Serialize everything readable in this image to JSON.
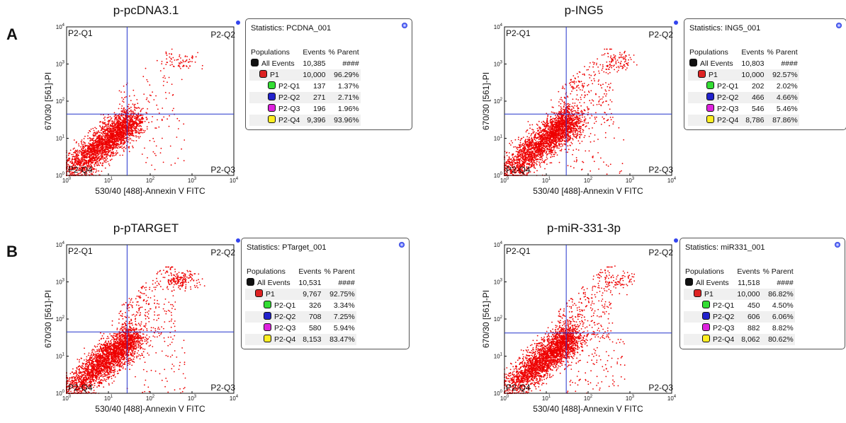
{
  "figure": {
    "panel_labels": [
      "A",
      "B"
    ],
    "axis": {
      "xlabel": "530/40 [488]-Annexin V FITC",
      "ylabel": "670/30 [561]-PI",
      "tick_labels": [
        "0",
        "1",
        "2",
        "3",
        "4"
      ]
    },
    "column_headers": {
      "populations": "Populations",
      "events": "Events",
      "parent": "% Parent"
    }
  },
  "chart_data": [
    {
      "type": "scatter",
      "title": "p-pcDNA3.1",
      "xlabel": "530/40 [488]-Annexin V FITC",
      "ylabel": "670/30 [561]-PI",
      "x_scale": "log",
      "y_scale": "log",
      "xlim": [
        1,
        10000
      ],
      "ylim": [
        1,
        10000
      ],
      "quadrant_gate": {
        "x": 28,
        "y": 45
      },
      "quadrant_labels": [
        "P2-Q1",
        "P2-Q2",
        "P2-Q3",
        "P2-Q4"
      ],
      "stats_title": "Statistics: PCDNA_001",
      "populations": [
        {
          "name": "All Events",
          "events": "10,385",
          "parent": "####",
          "color": "#111111",
          "level": 0
        },
        {
          "name": "P1",
          "events": "10,000",
          "parent": "96.29%",
          "color": "#dd2222",
          "level": 1
        },
        {
          "name": "P2-Q1",
          "events": "137",
          "parent": "1.37%",
          "color": "#33dd33",
          "level": 2
        },
        {
          "name": "P2-Q2",
          "events": "271",
          "parent": "2.71%",
          "color": "#2222cc",
          "level": 2
        },
        {
          "name": "P2-Q3",
          "events": "196",
          "parent": "1.96%",
          "color": "#dd22dd",
          "level": 2
        },
        {
          "name": "P2-Q4",
          "events": "9,396",
          "parent": "93.96%",
          "color": "#ffee22",
          "level": 2
        }
      ]
    },
    {
      "type": "scatter",
      "title": "p-ING5",
      "xlabel": "530/40 [488]-Annexin V FITC",
      "ylabel": "670/30 [561]-PI",
      "x_scale": "log",
      "y_scale": "log",
      "xlim": [
        1,
        10000
      ],
      "ylim": [
        1,
        10000
      ],
      "quadrant_gate": {
        "x": 30,
        "y": 45
      },
      "quadrant_labels": [
        "P2-Q1",
        "P2-Q2",
        "P2-Q3",
        "P2-Q4"
      ],
      "stats_title": "Statistics: ING5_001",
      "populations": [
        {
          "name": "All Events",
          "events": "10,803",
          "parent": "####",
          "color": "#111111",
          "level": 0
        },
        {
          "name": "P1",
          "events": "10,000",
          "parent": "92.57%",
          "color": "#dd2222",
          "level": 1
        },
        {
          "name": "P2-Q1",
          "events": "202",
          "parent": "2.02%",
          "color": "#33dd33",
          "level": 2
        },
        {
          "name": "P2-Q2",
          "events": "466",
          "parent": "4.66%",
          "color": "#2222cc",
          "level": 2
        },
        {
          "name": "P2-Q3",
          "events": "546",
          "parent": "5.46%",
          "color": "#dd22dd",
          "level": 2
        },
        {
          "name": "P2-Q4",
          "events": "8,786",
          "parent": "87.86%",
          "color": "#ffee22",
          "level": 2
        }
      ]
    },
    {
      "type": "scatter",
      "title": "p-pTARGET",
      "xlabel": "530/40 [488]-Annexin V FITC",
      "ylabel": "670/30 [561]-PI",
      "x_scale": "log",
      "y_scale": "log",
      "xlim": [
        1,
        10000
      ],
      "ylim": [
        1,
        10000
      ],
      "quadrant_gate": {
        "x": 28,
        "y": 45
      },
      "quadrant_labels": [
        "P2-Q1",
        "P2-Q2",
        "P2-Q3",
        "P2-Q4"
      ],
      "stats_title": "Statistics: PTarget_001",
      "populations": [
        {
          "name": "All Events",
          "events": "10,531",
          "parent": "####",
          "color": "#111111",
          "level": 0
        },
        {
          "name": "P1",
          "events": "9,767",
          "parent": "92.75%",
          "color": "#dd2222",
          "level": 1
        },
        {
          "name": "P2-Q1",
          "events": "326",
          "parent": "3.34%",
          "color": "#33dd33",
          "level": 2
        },
        {
          "name": "P2-Q2",
          "events": "708",
          "parent": "7.25%",
          "color": "#2222cc",
          "level": 2
        },
        {
          "name": "P2-Q3",
          "events": "580",
          "parent": "5.94%",
          "color": "#dd22dd",
          "level": 2
        },
        {
          "name": "P2-Q4",
          "events": "8,153",
          "parent": "83.47%",
          "color": "#ffee22",
          "level": 2
        }
      ]
    },
    {
      "type": "scatter",
      "title": "p-miR-331-3p",
      "xlabel": "530/40 [488]-Annexin V FITC",
      "ylabel": "670/30 [561]-PI",
      "x_scale": "log",
      "y_scale": "log",
      "xlim": [
        1,
        10000
      ],
      "ylim": [
        1,
        10000
      ],
      "quadrant_gate": {
        "x": 30,
        "y": 42
      },
      "quadrant_labels": [
        "P2-Q1",
        "P2-Q2",
        "P2-Q3",
        "P2-Q4"
      ],
      "stats_title": "Statistics: miR331_001",
      "populations": [
        {
          "name": "All Events",
          "events": "11,518",
          "parent": "####",
          "color": "#111111",
          "level": 0
        },
        {
          "name": "P1",
          "events": "10,000",
          "parent": "86.82%",
          "color": "#dd2222",
          "level": 1
        },
        {
          "name": "P2-Q1",
          "events": "450",
          "parent": "4.50%",
          "color": "#33dd33",
          "level": 2
        },
        {
          "name": "P2-Q2",
          "events": "606",
          "parent": "6.06%",
          "color": "#2222cc",
          "level": 2
        },
        {
          "name": "P2-Q3",
          "events": "882",
          "parent": "8.82%",
          "color": "#dd22dd",
          "level": 2
        },
        {
          "name": "P2-Q4",
          "events": "8,062",
          "parent": "80.62%",
          "color": "#ffee22",
          "level": 2
        }
      ]
    }
  ]
}
